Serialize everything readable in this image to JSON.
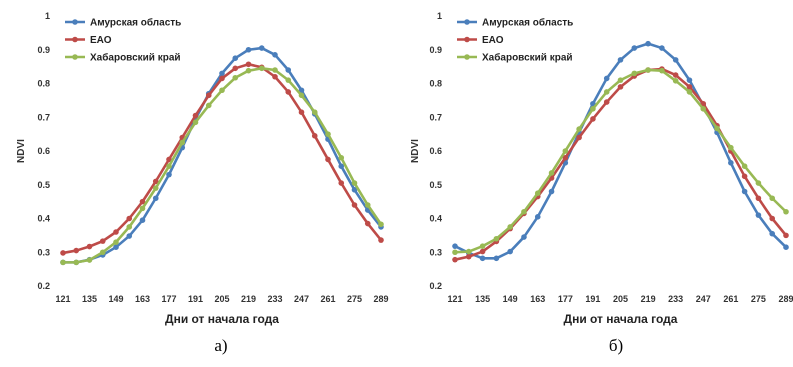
{
  "figure": {
    "shared": {
      "type": "line",
      "x": [
        121,
        128,
        135,
        142,
        149,
        156,
        163,
        170,
        177,
        184,
        191,
        198,
        205,
        212,
        219,
        226,
        233,
        240,
        247,
        254,
        261,
        268,
        275,
        282,
        289
      ],
      "xticks": [
        121,
        135,
        149,
        163,
        177,
        191,
        205,
        219,
        233,
        247,
        261,
        275,
        289
      ],
      "yticks": [
        0.2,
        0.3,
        0.4,
        0.5,
        0.6,
        0.7,
        0.8,
        0.9,
        1
      ],
      "ytick_labels": [
        "0.2",
        "0.3",
        "0.4",
        "0.5",
        "0.6",
        "0.7",
        "0.8",
        "0.9",
        "1"
      ],
      "xlabel": "Дни от начала года",
      "ylabel": "NDVI",
      "ylim": [
        0.2,
        1.0
      ],
      "xlim": [
        121,
        289
      ],
      "grid": false,
      "legend_position": "top-left",
      "colors": {
        "Амурская область": "#4a7ebb",
        "ЕАО": "#be4b48",
        "Хабаровский край": "#98b954"
      }
    },
    "chart_data": [
      {
        "type": "line",
        "caption": "а)",
        "x": [
          121,
          128,
          135,
          142,
          149,
          156,
          163,
          170,
          177,
          184,
          191,
          198,
          205,
          212,
          219,
          226,
          233,
          240,
          247,
          254,
          261,
          268,
          275,
          282,
          289
        ],
        "series": [
          {
            "name": "Амурская область",
            "values": [
              0.27,
              0.27,
              0.278,
              0.292,
              0.315,
              0.348,
              0.395,
              0.46,
              0.53,
              0.61,
              0.695,
              0.77,
              0.83,
              0.875,
              0.9,
              0.905,
              0.885,
              0.84,
              0.78,
              0.71,
              0.635,
              0.555,
              0.485,
              0.425,
              0.375
            ]
          },
          {
            "name": "ЕАО",
            "values": [
              0.298,
              0.305,
              0.317,
              0.333,
              0.36,
              0.4,
              0.45,
              0.51,
              0.575,
              0.64,
              0.705,
              0.765,
              0.815,
              0.845,
              0.857,
              0.848,
              0.82,
              0.775,
              0.715,
              0.645,
              0.575,
              0.505,
              0.44,
              0.385,
              0.336
            ]
          },
          {
            "name": "Хабаровский край",
            "values": [
              0.27,
              0.27,
              0.277,
              0.3,
              0.33,
              0.375,
              0.43,
              0.49,
              0.555,
              0.625,
              0.685,
              0.735,
              0.78,
              0.817,
              0.838,
              0.845,
              0.84,
              0.81,
              0.765,
              0.715,
              0.65,
              0.58,
              0.505,
              0.44,
              0.383
            ]
          }
        ]
      },
      {
        "type": "line",
        "caption": "б)",
        "x": [
          121,
          128,
          135,
          142,
          149,
          156,
          163,
          170,
          177,
          184,
          191,
          198,
          205,
          212,
          219,
          226,
          233,
          240,
          247,
          254,
          261,
          268,
          275,
          282,
          289
        ],
        "series": [
          {
            "name": "Амурская область",
            "values": [
              0.318,
              0.298,
              0.282,
              0.282,
              0.302,
              0.345,
              0.405,
              0.48,
              0.565,
              0.655,
              0.74,
              0.815,
              0.87,
              0.905,
              0.918,
              0.905,
              0.87,
              0.81,
              0.735,
              0.655,
              0.565,
              0.48,
              0.41,
              0.355,
              0.315
            ]
          },
          {
            "name": "ЕАО",
            "values": [
              0.278,
              0.287,
              0.302,
              0.332,
              0.37,
              0.415,
              0.465,
              0.52,
              0.58,
              0.64,
              0.695,
              0.745,
              0.79,
              0.822,
              0.84,
              0.843,
              0.825,
              0.79,
              0.74,
              0.675,
              0.6,
              0.525,
              0.46,
              0.4,
              0.35
            ]
          },
          {
            "name": "Хабаровский край",
            "values": [
              0.3,
              0.302,
              0.318,
              0.34,
              0.375,
              0.42,
              0.475,
              0.535,
              0.6,
              0.665,
              0.725,
              0.775,
              0.81,
              0.83,
              0.84,
              0.838,
              0.808,
              0.775,
              0.725,
              0.667,
              0.61,
              0.555,
              0.505,
              0.46,
              0.42
            ]
          }
        ]
      }
    ]
  }
}
